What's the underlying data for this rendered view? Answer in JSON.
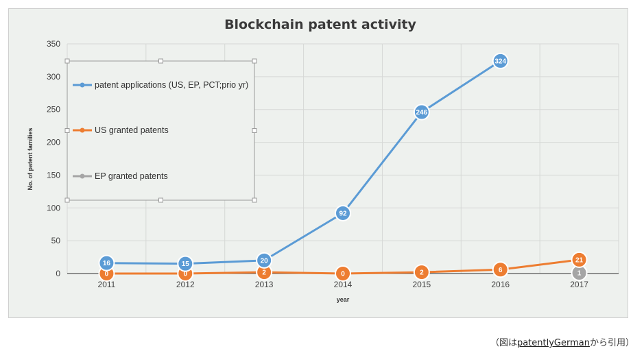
{
  "chart_data": {
    "type": "line",
    "title": "Blockchain patent activity",
    "xlabel": "year",
    "ylabel": "No. of patent families",
    "categories": [
      "2011",
      "2012",
      "2013",
      "2014",
      "2015",
      "2016",
      "2017"
    ],
    "ylim": [
      0,
      350
    ],
    "yticks": [
      0,
      50,
      100,
      150,
      200,
      250,
      300,
      350
    ],
    "grid": true,
    "legend_position": "top-left",
    "series": [
      {
        "name": "patent applications (US, EP, PCT;prio yr)",
        "color": "#5b9bd5",
        "values": [
          16,
          15,
          20,
          92,
          246,
          324,
          null
        ]
      },
      {
        "name": "US granted patents",
        "color": "#ed7d31",
        "values": [
          0,
          0,
          2,
          0,
          2,
          6,
          21
        ]
      },
      {
        "name": "EP granted patents",
        "color": "#a5a5a5",
        "values": [
          null,
          null,
          null,
          null,
          null,
          null,
          1
        ]
      }
    ]
  },
  "caption": {
    "prefix": "（図は",
    "link": "patentlyGerman",
    "suffix": "から引用）"
  }
}
